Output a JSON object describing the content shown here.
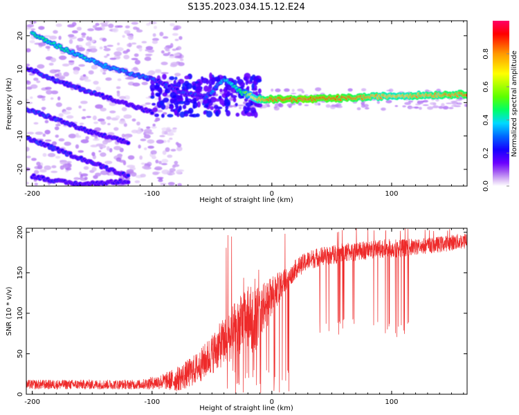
{
  "figure": {
    "title": "S135.2023.034.15.12.E24"
  },
  "colors": {
    "snr_line": "#ee2a2a",
    "background": "#ffffff",
    "axis": "#000000",
    "colorbar_stops": [
      "#ffffff",
      "#d7b8f5",
      "#a056f2",
      "#6a00ff",
      "#1500ff",
      "#0066ff",
      "#00d9ff",
      "#00ff66",
      "#5cff00",
      "#ffff00",
      "#ff9900",
      "#ff0000",
      "#ff0066"
    ]
  },
  "chart_data": [
    {
      "type": "heatmap",
      "title": "",
      "xlabel": "Height of straight line (km)",
      "ylabel": "Frequency (Hz)",
      "xlim": [
        -205,
        163
      ],
      "ylim": [
        -25,
        24.5
      ],
      "xticks": [
        -200,
        -100,
        0,
        100
      ],
      "yticks": [
        -20,
        -10,
        0,
        10,
        20
      ],
      "grid": false,
      "colorbar": {
        "label": "Normalized spectral amplitude",
        "range": [
          0,
          1
        ],
        "ticks": [
          0.0,
          0.2,
          0.4,
          0.6,
          0.8
        ]
      },
      "ridges": [
        {
          "desc": "main dispersive ridge",
          "x": [
            -200,
            -170,
            -140,
            -110,
            -95,
            -75,
            -55,
            -40,
            -25,
            -10,
            0,
            30,
            60,
            100,
            163
          ],
          "y": [
            20.5,
            15.5,
            11,
            8,
            6.5,
            3,
            1.5,
            7,
            3,
            1,
            1,
            1,
            1.3,
            2,
            2.5
          ],
          "amp": [
            0.45,
            0.4,
            0.35,
            0.3,
            0.25,
            0.25,
            0.25,
            0.35,
            0.45,
            0.8,
            0.9,
            0.95,
            0.9,
            0.75,
            0.85
          ]
        },
        {
          "desc": "alias ridge 1",
          "x": [
            -205,
            -180,
            -150,
            -120,
            -100
          ],
          "y": [
            10.5,
            6.5,
            3,
            -0.5,
            -3
          ],
          "amp": [
            0.25,
            0.25,
            0.25,
            0.2,
            0.2
          ]
        },
        {
          "desc": "alias ridge 2",
          "x": [
            -205,
            -180,
            -150,
            -120
          ],
          "y": [
            -2,
            -5,
            -9,
            -12
          ],
          "amp": [
            0.25,
            0.25,
            0.22,
            0.2
          ]
        },
        {
          "desc": "alias ridge 3",
          "x": [
            -205,
            -180,
            -150,
            -120
          ],
          "y": [
            -10.5,
            -14,
            -18,
            -22
          ],
          "amp": [
            0.25,
            0.25,
            0.22,
            0.2
          ]
        },
        {
          "desc": "alias ridge 4",
          "x": [
            -200,
            -180,
            -160,
            -140,
            -120
          ],
          "y": [
            -22,
            -23.5,
            -24.5,
            -24,
            -23.5
          ],
          "amp": [
            0.22,
            0.22,
            0.2,
            0.2,
            0.2
          ]
        }
      ]
    },
    {
      "type": "line",
      "title": "",
      "xlabel": "Height of straight line (km)",
      "ylabel": "SNR (10 * v/v)",
      "xlim": [
        -205,
        163
      ],
      "ylim": [
        0,
        205
      ],
      "xticks": [
        -200,
        -100,
        0,
        100
      ],
      "yticks": [
        0,
        50,
        100,
        150,
        200
      ],
      "grid": false,
      "series": [
        {
          "name": "",
          "x": [
            -205,
            -190,
            -170,
            -150,
            -130,
            -110,
            -100,
            -90,
            -80,
            -70,
            -60,
            -50,
            -40,
            -30,
            -20,
            -15,
            -10,
            -5,
            0,
            5,
            10,
            15,
            20,
            30,
            40,
            50,
            60,
            80,
            100,
            120,
            140,
            163
          ],
          "y": [
            12,
            12,
            12,
            12,
            12,
            12,
            14,
            16,
            18,
            25,
            35,
            50,
            65,
            80,
            95,
            90,
            100,
            110,
            120,
            130,
            140,
            145,
            155,
            165,
            170,
            172,
            175,
            178,
            180,
            182,
            185,
            190
          ],
          "noise": [
            6,
            6,
            6,
            6,
            6,
            6,
            8,
            10,
            15,
            18,
            20,
            25,
            30,
            35,
            40,
            40,
            35,
            30,
            25,
            20,
            15,
            12,
            12,
            12,
            12,
            12,
            12,
            12,
            12,
            10,
            10,
            10
          ]
        }
      ],
      "annotations": "frequent downward spikes to ~75 between x=40 and x=123"
    }
  ]
}
